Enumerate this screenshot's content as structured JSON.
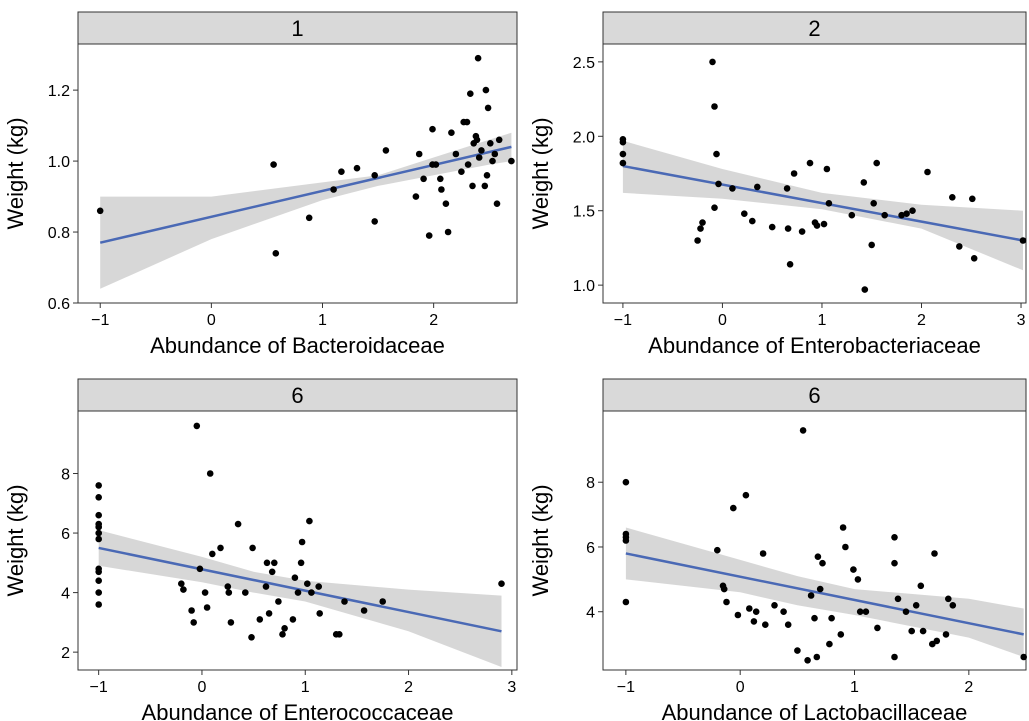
{
  "chart_data": [
    {
      "type": "scatter",
      "strip_label": "1",
      "xlabel": "Abundance of Bacteroidaceae",
      "ylabel": "Weight (kg)",
      "xlim": [
        -1.2,
        2.75
      ],
      "ylim": [
        0.6,
        1.33
      ],
      "xticks": [
        {
          "v": -1,
          "label": "−1"
        },
        {
          "v": 0,
          "label": "0"
        },
        {
          "v": 1,
          "label": "1"
        },
        {
          "v": 2,
          "label": "2"
        }
      ],
      "yticks": [
        {
          "v": 0.6,
          "label": "0.6"
        },
        {
          "v": 0.8,
          "label": "0.8"
        },
        {
          "v": 1.0,
          "label": "1.0"
        },
        {
          "v": 1.2,
          "label": "1.2"
        }
      ],
      "points": [
        [
          -1.0,
          0.86
        ],
        [
          0.56,
          0.99
        ],
        [
          0.58,
          0.74
        ],
        [
          0.88,
          0.84
        ],
        [
          1.1,
          0.92
        ],
        [
          1.17,
          0.97
        ],
        [
          1.31,
          0.98
        ],
        [
          1.47,
          0.83
        ],
        [
          1.47,
          0.96
        ],
        [
          1.57,
          1.03
        ],
        [
          1.84,
          0.9
        ],
        [
          1.87,
          1.02
        ],
        [
          1.91,
          0.95
        ],
        [
          1.96,
          0.79
        ],
        [
          1.99,
          0.99
        ],
        [
          1.99,
          1.09
        ],
        [
          2.02,
          0.99
        ],
        [
          2.06,
          0.95
        ],
        [
          2.07,
          0.92
        ],
        [
          2.11,
          0.88
        ],
        [
          2.13,
          0.8
        ],
        [
          2.16,
          1.08
        ],
        [
          2.2,
          1.02
        ],
        [
          2.25,
          0.97
        ],
        [
          2.27,
          1.11
        ],
        [
          2.3,
          1.11
        ],
        [
          2.31,
          0.99
        ],
        [
          2.33,
          1.19
        ],
        [
          2.35,
          0.93
        ],
        [
          2.36,
          1.05
        ],
        [
          2.38,
          1.07
        ],
        [
          2.39,
          1.06
        ],
        [
          2.4,
          1.29
        ],
        [
          2.41,
          1.01
        ],
        [
          2.43,
          1.03
        ],
        [
          2.46,
          0.93
        ],
        [
          2.47,
          1.2
        ],
        [
          2.48,
          0.96
        ],
        [
          2.49,
          1.15
        ],
        [
          2.51,
          1.05
        ],
        [
          2.53,
          1.0
        ],
        [
          2.55,
          1.02
        ],
        [
          2.57,
          0.88
        ],
        [
          2.59,
          1.06
        ],
        [
          2.7,
          1.0
        ]
      ],
      "fit": {
        "x": [
          -1.0,
          2.7
        ],
        "y": [
          0.77,
          1.04
        ]
      },
      "band": {
        "x": [
          -1.0,
          0.0,
          1.0,
          1.5,
          2.0,
          2.5,
          2.7
        ],
        "lower": [
          0.64,
          0.78,
          0.89,
          0.93,
          0.96,
          0.99,
          1.0
        ],
        "upper": [
          0.9,
          0.9,
          0.94,
          0.96,
          1.01,
          1.06,
          1.08
        ]
      },
      "colors": {
        "points": "#000000",
        "fit": "#4a69b5",
        "band": "#d0d0d0",
        "strip": "#d9d9d9"
      }
    },
    {
      "type": "scatter",
      "strip_label": "2",
      "xlabel": "Abundance of Enterobacteriaceae",
      "ylabel": "Weight (kg)",
      "xlim": [
        -1.2,
        3.05
      ],
      "ylim": [
        0.88,
        2.62
      ],
      "xticks": [
        {
          "v": -1,
          "label": "−1"
        },
        {
          "v": 0,
          "label": "0"
        },
        {
          "v": 1,
          "label": "1"
        },
        {
          "v": 2,
          "label": "2"
        },
        {
          "v": 3,
          "label": "3"
        }
      ],
      "yticks": [
        {
          "v": 1.0,
          "label": "1.0"
        },
        {
          "v": 1.5,
          "label": "1.5"
        },
        {
          "v": 2.0,
          "label": "2.0"
        },
        {
          "v": 2.5,
          "label": "2.5"
        }
      ],
      "points": [
        [
          -1.0,
          1.98
        ],
        [
          -1.0,
          1.96
        ],
        [
          -1.0,
          1.88
        ],
        [
          -1.0,
          1.82
        ],
        [
          -0.25,
          1.3
        ],
        [
          -0.22,
          1.38
        ],
        [
          -0.2,
          1.42
        ],
        [
          -0.1,
          2.5
        ],
        [
          -0.08,
          2.2
        ],
        [
          -0.06,
          1.88
        ],
        [
          -0.08,
          1.52
        ],
        [
          -0.04,
          1.68
        ],
        [
          0.1,
          1.65
        ],
        [
          0.22,
          1.48
        ],
        [
          0.3,
          1.43
        ],
        [
          0.35,
          1.66
        ],
        [
          0.5,
          1.39
        ],
        [
          0.65,
          1.65
        ],
        [
          0.68,
          1.14
        ],
        [
          0.66,
          1.38
        ],
        [
          0.72,
          1.75
        ],
        [
          0.8,
          1.36
        ],
        [
          0.88,
          1.82
        ],
        [
          0.93,
          1.42
        ],
        [
          0.95,
          1.4
        ],
        [
          1.02,
          1.41
        ],
        [
          1.05,
          1.78
        ],
        [
          1.07,
          1.55
        ],
        [
          1.3,
          1.47
        ],
        [
          1.42,
          1.69
        ],
        [
          1.43,
          0.97
        ],
        [
          1.52,
          1.55
        ],
        [
          1.5,
          1.27
        ],
        [
          1.55,
          1.82
        ],
        [
          1.63,
          1.47
        ],
        [
          1.8,
          1.47
        ],
        [
          1.85,
          1.48
        ],
        [
          1.91,
          1.5
        ],
        [
          2.06,
          1.76
        ],
        [
          2.31,
          1.59
        ],
        [
          2.38,
          1.26
        ],
        [
          2.51,
          1.58
        ],
        [
          2.53,
          1.18
        ],
        [
          3.02,
          1.3
        ]
      ],
      "fit": {
        "x": [
          -1.0,
          3.02
        ],
        "y": [
          1.8,
          1.3
        ]
      },
      "band": {
        "x": [
          -1.0,
          0.0,
          1.0,
          2.0,
          3.02
        ],
        "lower": [
          1.62,
          1.58,
          1.51,
          1.38,
          1.1
        ],
        "upper": [
          1.97,
          1.78,
          1.62,
          1.54,
          1.5
        ]
      },
      "colors": {
        "points": "#000000",
        "fit": "#4a69b5",
        "band": "#d0d0d0",
        "strip": "#d9d9d9"
      }
    },
    {
      "type": "scatter",
      "strip_label": "6",
      "xlabel": "Abundance of Enterococcaceae",
      "ylabel": "Weight (kg)",
      "xlim": [
        -1.2,
        3.05
      ],
      "ylim": [
        1.4,
        10.1
      ],
      "xticks": [
        {
          "v": -1,
          "label": "−1"
        },
        {
          "v": 0,
          "label": "0"
        },
        {
          "v": 1,
          "label": "1"
        },
        {
          "v": 2,
          "label": "2"
        },
        {
          "v": 3,
          "label": "3"
        }
      ],
      "yticks": [
        {
          "v": 2,
          "label": "2"
        },
        {
          "v": 4,
          "label": "4"
        },
        {
          "v": 6,
          "label": "6"
        },
        {
          "v": 8,
          "label": "8"
        }
      ],
      "points": [
        [
          -1.0,
          7.6
        ],
        [
          -1.0,
          7.2
        ],
        [
          -1.0,
          6.6
        ],
        [
          -1.0,
          6.3
        ],
        [
          -1.0,
          6.2
        ],
        [
          -1.0,
          6.0
        ],
        [
          -1.0,
          5.8
        ],
        [
          -1.0,
          4.8
        ],
        [
          -1.0,
          4.7
        ],
        [
          -1.0,
          4.4
        ],
        [
          -1.0,
          4.0
        ],
        [
          -1.0,
          3.6
        ],
        [
          -0.2,
          4.3
        ],
        [
          -0.18,
          4.1
        ],
        [
          -0.1,
          3.4
        ],
        [
          -0.08,
          3.0
        ],
        [
          -0.05,
          9.6
        ],
        [
          -0.02,
          4.8
        ],
        [
          0.03,
          4.0
        ],
        [
          0.05,
          3.5
        ],
        [
          0.08,
          8.0
        ],
        [
          0.1,
          5.3
        ],
        [
          0.18,
          5.5
        ],
        [
          0.25,
          4.2
        ],
        [
          0.26,
          4.0
        ],
        [
          0.28,
          3.0
        ],
        [
          0.35,
          6.3
        ],
        [
          0.42,
          4.0
        ],
        [
          0.48,
          2.5
        ],
        [
          0.49,
          5.5
        ],
        [
          0.56,
          3.1
        ],
        [
          0.62,
          4.2
        ],
        [
          0.63,
          5.0
        ],
        [
          0.65,
          3.3
        ],
        [
          0.68,
          4.7
        ],
        [
          0.7,
          5.0
        ],
        [
          0.74,
          3.7
        ],
        [
          0.78,
          2.6
        ],
        [
          0.8,
          2.8
        ],
        [
          0.88,
          3.1
        ],
        [
          0.9,
          4.5
        ],
        [
          0.93,
          4.0
        ],
        [
          0.96,
          5.0
        ],
        [
          0.97,
          5.7
        ],
        [
          1.02,
          4.3
        ],
        [
          1.04,
          6.4
        ],
        [
          1.06,
          4.0
        ],
        [
          1.13,
          4.2
        ],
        [
          1.14,
          3.3
        ],
        [
          1.3,
          2.6
        ],
        [
          1.33,
          2.6
        ],
        [
          1.38,
          3.7
        ],
        [
          1.57,
          3.4
        ],
        [
          1.75,
          3.7
        ],
        [
          2.9,
          4.3
        ]
      ],
      "fit": {
        "x": [
          -1.0,
          2.9
        ],
        "y": [
          5.5,
          2.7
        ]
      },
      "band": {
        "x": [
          -1.0,
          0.0,
          0.5,
          1.0,
          2.0,
          2.9
        ],
        "lower": [
          4.9,
          4.35,
          4.0,
          3.7,
          2.7,
          1.5
        ],
        "upper": [
          6.1,
          5.2,
          4.7,
          4.4,
          4.1,
          3.9
        ]
      },
      "colors": {
        "points": "#000000",
        "fit": "#4a69b5",
        "band": "#d0d0d0",
        "strip": "#d9d9d9"
      }
    },
    {
      "type": "scatter",
      "strip_label": "6",
      "xlabel": "Abundance of Lactobacillaceae",
      "ylabel": "Weight (kg)",
      "xlim": [
        -1.2,
        2.5
      ],
      "ylim": [
        2.2,
        10.2
      ],
      "xticks": [
        {
          "v": -1,
          "label": "−1"
        },
        {
          "v": 0,
          "label": "0"
        },
        {
          "v": 1,
          "label": "1"
        },
        {
          "v": 2,
          "label": "2"
        }
      ],
      "yticks": [
        {
          "v": 4,
          "label": "4"
        },
        {
          "v": 6,
          "label": "6"
        },
        {
          "v": 8,
          "label": "8"
        }
      ],
      "points": [
        [
          -1.0,
          8.0
        ],
        [
          -1.0,
          6.4
        ],
        [
          -1.0,
          6.3
        ],
        [
          -1.0,
          6.2
        ],
        [
          -1.0,
          4.3
        ],
        [
          -0.2,
          5.9
        ],
        [
          -0.15,
          4.8
        ],
        [
          -0.14,
          4.7
        ],
        [
          -0.12,
          4.3
        ],
        [
          -0.06,
          7.2
        ],
        [
          -0.02,
          3.9
        ],
        [
          0.05,
          7.6
        ],
        [
          0.08,
          4.1
        ],
        [
          0.12,
          3.7
        ],
        [
          0.14,
          4.0
        ],
        [
          0.2,
          5.8
        ],
        [
          0.22,
          3.6
        ],
        [
          0.3,
          4.2
        ],
        [
          0.38,
          4.0
        ],
        [
          0.42,
          3.6
        ],
        [
          0.5,
          2.8
        ],
        [
          0.55,
          9.6
        ],
        [
          0.59,
          2.5
        ],
        [
          0.62,
          4.5
        ],
        [
          0.65,
          3.8
        ],
        [
          0.67,
          2.6
        ],
        [
          0.68,
          5.7
        ],
        [
          0.7,
          4.7
        ],
        [
          0.72,
          5.5
        ],
        [
          0.78,
          3.0
        ],
        [
          0.8,
          3.8
        ],
        [
          0.88,
          3.3
        ],
        [
          0.9,
          6.6
        ],
        [
          0.92,
          6.0
        ],
        [
          0.99,
          5.3
        ],
        [
          1.03,
          5.0
        ],
        [
          1.05,
          4.0
        ],
        [
          1.1,
          4.0
        ],
        [
          1.2,
          3.5
        ],
        [
          1.35,
          6.3
        ],
        [
          1.35,
          5.5
        ],
        [
          1.35,
          2.6
        ],
        [
          1.38,
          4.4
        ],
        [
          1.45,
          4.0
        ],
        [
          1.5,
          3.4
        ],
        [
          1.54,
          4.2
        ],
        [
          1.58,
          4.8
        ],
        [
          1.6,
          3.4
        ],
        [
          1.68,
          3.0
        ],
        [
          1.7,
          5.8
        ],
        [
          1.72,
          3.1
        ],
        [
          1.8,
          3.3
        ],
        [
          1.82,
          4.4
        ],
        [
          1.86,
          4.2
        ],
        [
          2.48,
          2.6
        ]
      ],
      "fit": {
        "x": [
          -1.0,
          2.48
        ],
        "y": [
          5.8,
          3.3
        ]
      },
      "band": {
        "x": [
          -1.0,
          0.0,
          0.5,
          1.0,
          2.0,
          2.48
        ],
        "lower": [
          5.0,
          4.6,
          4.2,
          3.9,
          3.2,
          2.6
        ],
        "upper": [
          6.6,
          5.6,
          5.1,
          4.7,
          4.4,
          4.1
        ]
      },
      "colors": {
        "points": "#000000",
        "fit": "#4a69b5",
        "band": "#d0d0d0",
        "strip": "#d9d9d9"
      }
    }
  ]
}
